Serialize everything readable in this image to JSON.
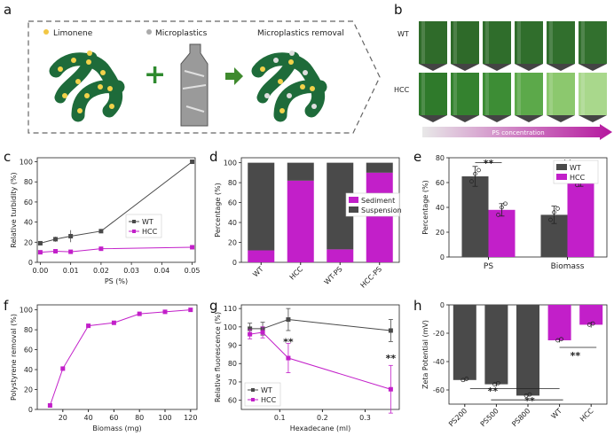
{
  "panels": {
    "a": {
      "label": "a",
      "items": [
        "Limonene",
        "Microplastics",
        "Microplastics removal"
      ],
      "operators": [
        "+",
        "→"
      ]
    },
    "b": {
      "label": "b",
      "rows": [
        "WT",
        "HCC"
      ],
      "arrow_label": "PS concentration",
      "wt_colors": [
        "#2f6b2a",
        "#2e6a29",
        "#2f6d2b",
        "#306e2c",
        "#316f2d",
        "#32702e"
      ],
      "hcc_colors": [
        "#2f7a2b",
        "#34822f",
        "#3d8d35",
        "#5ca94a",
        "#8cc86e",
        "#a9d88c"
      ]
    },
    "c": {
      "label": "c"
    },
    "d": {
      "label": "d"
    },
    "e": {
      "label": "e"
    },
    "f": {
      "label": "f"
    },
    "g": {
      "label": "g"
    },
    "h": {
      "label": "h"
    }
  },
  "colors": {
    "wt": "#4a4a4a",
    "hcc": "#c21fc9",
    "accent": "#b5179e"
  },
  "chart_data": [
    {
      "id": "c",
      "type": "line",
      "xlabel": "PS (%)",
      "ylabel": "Relative turbidity (%)",
      "xlim": [
        -0.001,
        0.051
      ],
      "ylim": [
        0,
        104
      ],
      "xticks": [
        0.0,
        0.01,
        0.02,
        0.03,
        0.04,
        0.05
      ],
      "xtick_labels": [
        "0.00",
        "0.01",
        "0.02",
        "0.03",
        "0.04",
        "0.05"
      ],
      "yticks": [
        0,
        20,
        40,
        60,
        80,
        100
      ],
      "legend": "center-right",
      "series": [
        {
          "name": "WT",
          "x": [
            0.0,
            0.005,
            0.01,
            0.02,
            0.05
          ],
          "y": [
            19,
            23,
            26,
            31,
            100
          ],
          "err": [
            1.5,
            2.5,
            6,
            1.5,
            1
          ]
        },
        {
          "name": "HCC",
          "x": [
            0.0,
            0.005,
            0.01,
            0.02,
            0.05
          ],
          "y": [
            10,
            11,
            10.5,
            13.5,
            15
          ],
          "err": [
            1,
            1.5,
            1,
            1,
            1
          ]
        }
      ]
    },
    {
      "id": "d",
      "type": "bar",
      "stacked": true,
      "ylabel": "Percentage (%)",
      "ylim": [
        0,
        105
      ],
      "yticks": [
        0,
        20,
        40,
        60,
        80,
        100
      ],
      "categories": [
        "WT",
        "HCC",
        "WT-PS",
        "HCC-PS"
      ],
      "legend": "center-right",
      "series": [
        {
          "name": "Sediment",
          "values": [
            12,
            82,
            13,
            90
          ]
        },
        {
          "name": "Suspension",
          "values": [
            88,
            18,
            87,
            10
          ]
        }
      ]
    },
    {
      "id": "e",
      "type": "bar",
      "ylabel": "Percentage (%)",
      "ylim": [
        0,
        80
      ],
      "yticks": [
        0,
        20,
        40,
        60,
        80
      ],
      "categories": [
        "PS",
        "Biomass"
      ],
      "legend": "top-right",
      "series": [
        {
          "name": "WT",
          "values": [
            65,
            34
          ],
          "err": [
            8,
            7
          ]
        },
        {
          "name": "HCC",
          "values": [
            38,
            62
          ],
          "err": [
            5,
            5
          ]
        }
      ],
      "annotations": [
        "**",
        "**"
      ]
    },
    {
      "id": "f",
      "type": "line",
      "xlabel": "Biomass (mg)",
      "ylabel": "Polystyrene removal (%)",
      "xlim": [
        0,
        125
      ],
      "ylim": [
        0,
        105
      ],
      "xticks": [
        20,
        40,
        60,
        80,
        100,
        120
      ],
      "yticks": [
        0,
        20,
        40,
        60,
        80,
        100
      ],
      "series": [
        {
          "name": "Removal",
          "x": [
            10,
            20,
            40,
            60,
            80,
            100,
            120
          ],
          "y": [
            4,
            41,
            84,
            87,
            96,
            98,
            100
          ]
        }
      ]
    },
    {
      "id": "g",
      "type": "line",
      "xlabel": "Hexadecane (ml)",
      "ylabel": "Relative fluorescence (%)",
      "xlim": [
        0.01,
        0.38
      ],
      "ylim": [
        55,
        112
      ],
      "xticks": [
        0.1,
        0.2,
        0.3
      ],
      "xtick_labels": [
        "0.1",
        "0.2",
        "0.3"
      ],
      "yticks": [
        60,
        70,
        80,
        90,
        100,
        110
      ],
      "legend": "bottom-left",
      "series": [
        {
          "name": "WT",
          "x": [
            0.03,
            0.06,
            0.12,
            0.36
          ],
          "y": [
            99,
            99,
            104,
            98
          ],
          "err": [
            3,
            3.5,
            6,
            6
          ]
        },
        {
          "name": "HCC",
          "x": [
            0.03,
            0.06,
            0.12,
            0.36
          ],
          "y": [
            96,
            97,
            83,
            66
          ],
          "err": [
            2.5,
            3,
            8,
            13
          ]
        }
      ],
      "annotations": [
        "**",
        "**"
      ]
    },
    {
      "id": "h",
      "type": "bar",
      "ylabel": "Zeta Potential (mV)",
      "ylim": [
        -70,
        0
      ],
      "yticks": [
        -60,
        -40,
        -20,
        0
      ],
      "categories": [
        "PS200",
        "PS500",
        "PS800",
        "WT",
        "HCC"
      ],
      "values": [
        -53,
        -56,
        -64,
        -25,
        -14
      ],
      "err": [
        1,
        1.5,
        1,
        1.5,
        2
      ],
      "annotations": [
        "**",
        "**",
        "**"
      ]
    }
  ]
}
